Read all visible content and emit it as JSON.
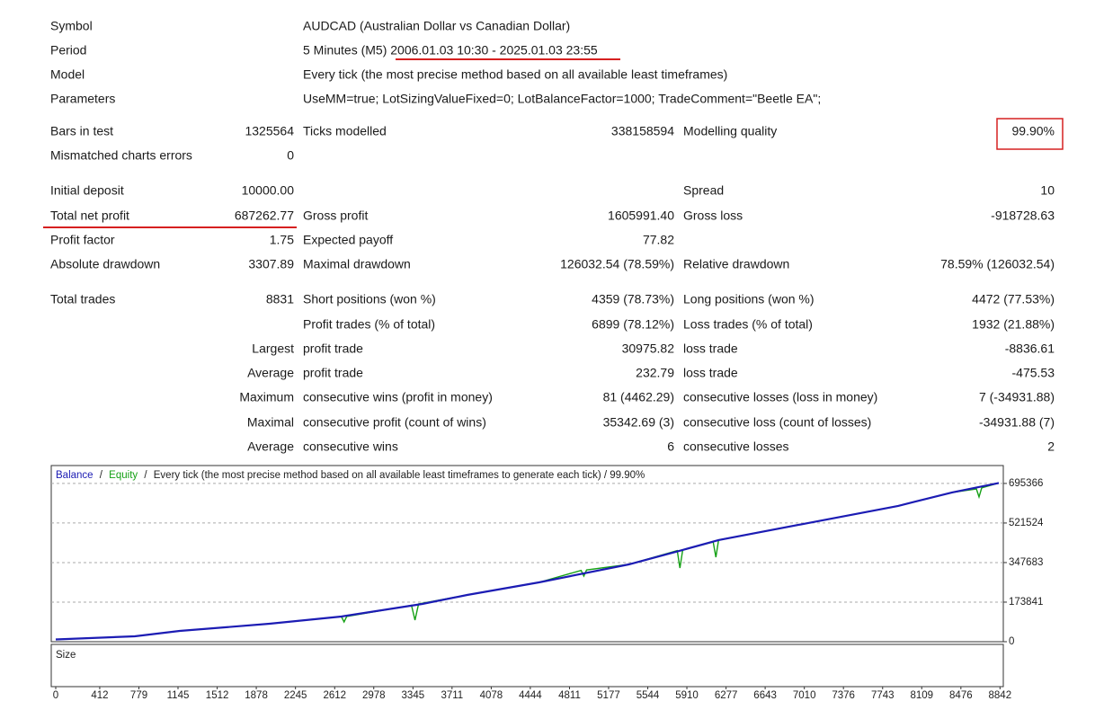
{
  "header": {
    "rows": [
      {
        "label": "Symbol",
        "value": "AUDCAD (Australian Dollar vs Canadian Dollar)"
      },
      {
        "label": "Period",
        "value": "5 Minutes (M5) 2006.01.03 10:30 - 2025.01.03 23:55"
      },
      {
        "label": "Model",
        "value": "Every tick (the most precise method based on all available least timeframes)"
      },
      {
        "label": "Parameters",
        "value": "UseMM=true; LotSizingValueFixed=0; LotBalanceFactor=1000; TradeComment=\"Beetle EA\";"
      }
    ]
  },
  "stats": {
    "rows": [
      [
        "Bars in test",
        "1325564",
        "Ticks modelled",
        "338158594",
        "Modelling quality",
        "99.90%"
      ],
      [
        "Mismatched charts errors",
        "0",
        null,
        null,
        null,
        null
      ],
      [
        "Initial deposit",
        "10000.00",
        null,
        null,
        "Spread",
        "10"
      ],
      [
        "Total net profit",
        "687262.77",
        "Gross profit",
        "1605991.40",
        "Gross loss",
        "-918728.63"
      ],
      [
        "Profit factor",
        "1.75",
        "Expected payoff",
        "77.82",
        null,
        null
      ],
      [
        "Absolute drawdown",
        "3307.89",
        "Maximal drawdown",
        "126032.54 (78.59%)",
        "Relative drawdown",
        "78.59% (126032.54)"
      ],
      [
        "Total trades",
        "8831",
        "Short positions (won %)",
        "4359 (78.73%)",
        "Long positions (won %)",
        "4472 (77.53%)"
      ],
      [
        null,
        null,
        "Profit trades (% of total)",
        "6899 (78.12%)",
        "Loss trades (% of total)",
        "1932 (21.88%)"
      ],
      [
        null,
        "Largest",
        "profit trade",
        "30975.82",
        "loss trade",
        "-8836.61"
      ],
      [
        null,
        "Average",
        "profit trade",
        "232.79",
        "loss trade",
        "-475.53"
      ],
      [
        null,
        "Maximum",
        "consecutive wins (profit in money)",
        "81 (4462.29)",
        "consecutive losses (loss in money)",
        "7 (-34931.88)"
      ],
      [
        null,
        "Maximal",
        "consecutive profit (count of wins)",
        "35342.69 (3)",
        "consecutive loss (count of losses)",
        "-34931.88 (7)"
      ],
      [
        null,
        "Average",
        "consecutive wins",
        "6",
        "consecutive losses",
        "2"
      ]
    ]
  },
  "chart_data": {
    "type": "line",
    "title": "Every tick (the most precise method based on all available least timeframes to generate each tick) / 99.90%",
    "separator": "/",
    "panel_label": "Size",
    "series": [
      {
        "name": "Balance",
        "color": "#1c1cb4",
        "x": [
          0,
          740,
          1161,
          2002,
          2675,
          3432,
          3852,
          4525,
          5366,
          5871,
          6207,
          7048,
          7889,
          8394,
          8831
        ],
        "values": [
          10000,
          23706,
          47412,
          79020,
          110628,
          165942,
          205452,
          260766,
          339786,
          403002,
          446463,
          521532,
          596601,
          655866,
          697262
        ]
      },
      {
        "name": "Equity",
        "color": "#14a014",
        "x": [
          0,
          740,
          1161,
          2002,
          2675,
          2700,
          2725,
          3331,
          3364,
          3398,
          3852,
          4525,
          4920,
          4945,
          4971,
          5366,
          5820,
          5845,
          5871,
          6156,
          6182,
          6207,
          7048,
          7889,
          8394,
          8621,
          8646,
          8671,
          8831
        ],
        "values": [
          10000,
          23706,
          47412,
          79020,
          110628,
          86922,
          111000,
          160000,
          94824,
          166000,
          205452,
          260766,
          313000,
          288423,
          315000,
          339786,
          400000,
          323982,
          403002,
          438000,
          371394,
          446463,
          521532,
          596601,
          655866,
          671000,
          636111,
          676000,
          697262
        ]
      }
    ],
    "xlim": [
      -42,
      8873
    ],
    "xticks": [
      0,
      412,
      779,
      1145,
      1512,
      1878,
      2245,
      2612,
      2978,
      3345,
      3711,
      4078,
      4444,
      4811,
      5177,
      5544,
      5910,
      6277,
      6643,
      7010,
      7376,
      7743,
      8109,
      8476,
      8842
    ],
    "ylim": [
      0,
      774000
    ],
    "yticks": [
      0,
      173841,
      347683,
      521524,
      695366
    ],
    "grid": true
  }
}
